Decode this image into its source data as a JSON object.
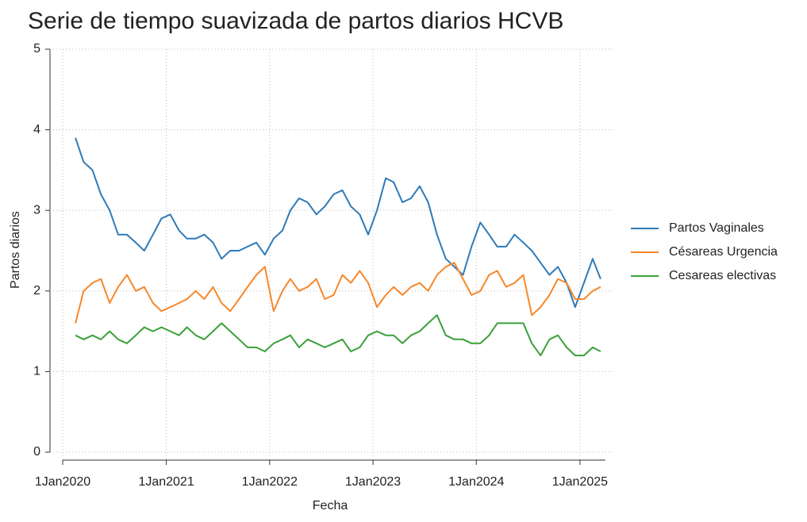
{
  "chart_data": {
    "type": "line",
    "title": "Serie de tiempo suavizada de partos diarios HCVB",
    "x_label": "Fecha",
    "y_label": "Partos diarios",
    "x": [
      "2020-02-15",
      "2020-03-15",
      "2020-04-15",
      "2020-05-15",
      "2020-06-15",
      "2020-07-15",
      "2020-08-15",
      "2020-09-15",
      "2020-10-15",
      "2020-11-15",
      "2020-12-15",
      "2021-01-15",
      "2021-02-15",
      "2021-03-15",
      "2021-04-15",
      "2021-05-15",
      "2021-06-15",
      "2021-07-15",
      "2021-08-15",
      "2021-09-15",
      "2021-10-15",
      "2021-11-15",
      "2021-12-15",
      "2022-01-15",
      "2022-02-15",
      "2022-03-15",
      "2022-04-15",
      "2022-05-15",
      "2022-06-15",
      "2022-07-15",
      "2022-08-15",
      "2022-09-15",
      "2022-10-15",
      "2022-11-15",
      "2022-12-15",
      "2023-01-15",
      "2023-02-15",
      "2023-03-15",
      "2023-04-15",
      "2023-05-15",
      "2023-06-15",
      "2023-07-15",
      "2023-08-15",
      "2023-09-15",
      "2023-10-15",
      "2023-11-15",
      "2023-12-15",
      "2024-01-15",
      "2024-02-15",
      "2024-03-15",
      "2024-04-15",
      "2024-05-15",
      "2024-06-15",
      "2024-07-15",
      "2024-08-15",
      "2024-09-15",
      "2024-10-15",
      "2024-11-15",
      "2024-12-15",
      "2025-01-15",
      "2025-02-15",
      "2025-03-15"
    ],
    "series": [
      {
        "name": "Partos Vaginales",
        "color": "#2f7ab8",
        "values": [
          3.9,
          3.6,
          3.5,
          3.2,
          3.0,
          2.7,
          2.7,
          2.6,
          2.5,
          2.7,
          2.9,
          2.95,
          2.75,
          2.65,
          2.65,
          2.7,
          2.6,
          2.4,
          2.5,
          2.5,
          2.55,
          2.6,
          2.45,
          2.65,
          2.75,
          3.0,
          3.15,
          3.1,
          2.95,
          3.05,
          3.2,
          3.25,
          3.05,
          2.95,
          2.7,
          3.0,
          3.4,
          3.35,
          3.1,
          3.15,
          3.3,
          3.1,
          2.7,
          2.4,
          2.3,
          2.2,
          2.55,
          2.85,
          2.7,
          2.55,
          2.55,
          2.7,
          2.6,
          2.5,
          2.35,
          2.2,
          2.3,
          2.1,
          1.8,
          2.1,
          2.4,
          2.15
        ]
      },
      {
        "name": "Césareas Urgencia",
        "color": "#f7872a",
        "values": [
          1.6,
          2.0,
          2.1,
          2.15,
          1.85,
          2.05,
          2.2,
          2.0,
          2.05,
          1.85,
          1.75,
          1.8,
          1.85,
          1.9,
          2.0,
          1.9,
          2.05,
          1.85,
          1.75,
          1.9,
          2.05,
          2.2,
          2.3,
          1.75,
          2.0,
          2.15,
          2.0,
          2.05,
          2.15,
          1.9,
          1.95,
          2.2,
          2.1,
          2.25,
          2.1,
          1.8,
          1.95,
          2.05,
          1.95,
          2.05,
          2.1,
          2.0,
          2.2,
          2.3,
          2.35,
          2.15,
          1.95,
          2.0,
          2.2,
          2.25,
          2.05,
          2.1,
          2.2,
          1.7,
          1.8,
          1.95,
          2.15,
          2.1,
          1.9,
          1.9,
          2.0,
          2.05
        ]
      },
      {
        "name": "Cesareas electivas",
        "color": "#3aa03a",
        "values": [
          1.45,
          1.4,
          1.45,
          1.4,
          1.5,
          1.4,
          1.35,
          1.45,
          1.55,
          1.5,
          1.55,
          1.5,
          1.45,
          1.55,
          1.45,
          1.4,
          1.5,
          1.6,
          1.5,
          1.4,
          1.3,
          1.3,
          1.25,
          1.35,
          1.4,
          1.45,
          1.3,
          1.4,
          1.35,
          1.3,
          1.35,
          1.4,
          1.25,
          1.3,
          1.45,
          1.5,
          1.45,
          1.45,
          1.35,
          1.45,
          1.5,
          1.6,
          1.7,
          1.45,
          1.4,
          1.4,
          1.35,
          1.35,
          1.45,
          1.6,
          1.6,
          1.6,
          1.6,
          1.35,
          1.2,
          1.4,
          1.45,
          1.3,
          1.2,
          1.2,
          1.3,
          1.25
        ]
      }
    ],
    "xlim": [
      "2020-01-01",
      "2025-04-01"
    ],
    "xticks": [
      {
        "value": "2020-01-01",
        "label": "1Jan2020"
      },
      {
        "value": "2021-01-01",
        "label": "1Jan2021"
      },
      {
        "value": "2022-01-01",
        "label": "1Jan2022"
      },
      {
        "value": "2023-01-01",
        "label": "1Jan2023"
      },
      {
        "value": "2024-01-01",
        "label": "1Jan2024"
      },
      {
        "value": "2025-01-01",
        "label": "1Jan2025"
      }
    ],
    "ylim": [
      0,
      5
    ],
    "yticks": [
      0,
      1,
      2,
      3,
      4,
      5
    ],
    "grid": true,
    "legend": "right"
  }
}
